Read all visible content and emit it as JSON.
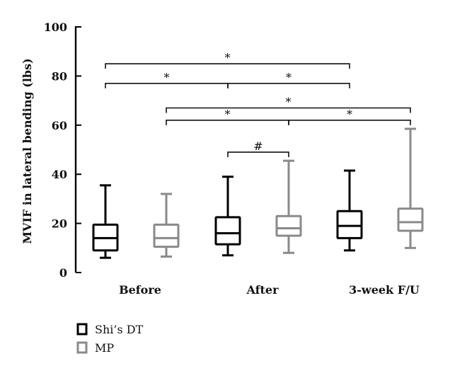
{
  "chart_data": {
    "type": "box",
    "ylabel": "MVIF in lateral bending (lbs)",
    "ylim": [
      0,
      100
    ],
    "yticks": [
      0,
      20,
      40,
      60,
      80,
      100
    ],
    "categories": [
      "Before",
      "After",
      "3-week F/U"
    ],
    "series": [
      {
        "name": "Shi’s DT",
        "color": "#000000",
        "boxes": [
          {
            "min": 6,
            "q1": 9,
            "median": 14,
            "q3": 19.5,
            "max": 35.5
          },
          {
            "min": 7,
            "q1": 11.5,
            "median": 16,
            "q3": 22.5,
            "max": 39
          },
          {
            "min": 9,
            "q1": 14,
            "median": 19,
            "q3": 25,
            "max": 41.5
          }
        ]
      },
      {
        "name": "MP",
        "color": "#8a8a8a",
        "boxes": [
          {
            "min": 6.5,
            "q1": 10.5,
            "median": 14,
            "q3": 19.5,
            "max": 32
          },
          {
            "min": 8,
            "q1": 15,
            "median": 18,
            "q3": 23,
            "max": 45.5
          },
          {
            "min": 10,
            "q1": 17,
            "median": 20.5,
            "q3": 26,
            "max": 58.5
          }
        ]
      }
    ],
    "significance": [
      {
        "from": 0,
        "to": 4,
        "y": 85,
        "mark": "*"
      },
      {
        "from": 0,
        "to": 2,
        "y": 77,
        "mark": "*"
      },
      {
        "from": 2,
        "to": 4,
        "y": 77,
        "mark": "*"
      },
      {
        "from": 1,
        "to": 5,
        "y": 67,
        "mark": "*"
      },
      {
        "from": 1,
        "to": 3,
        "y": 62,
        "mark": "*"
      },
      {
        "from": 3,
        "to": 5,
        "y": 62,
        "mark": "*"
      },
      {
        "from": 2,
        "to": 3,
        "y": 49,
        "mark": "#"
      }
    ],
    "legend_position": "bottom-left"
  }
}
